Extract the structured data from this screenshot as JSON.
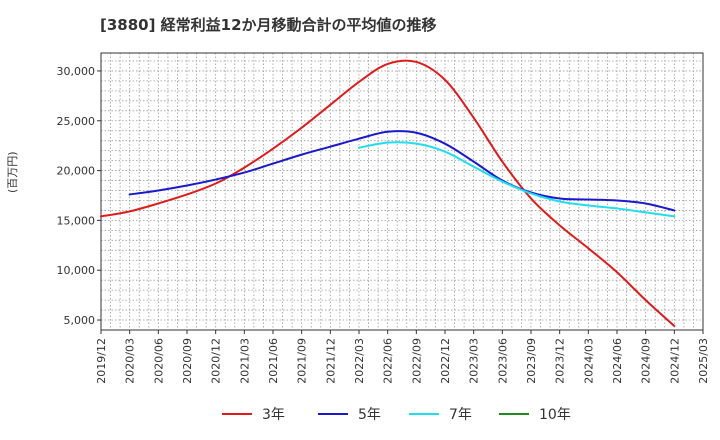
{
  "chart_data": {
    "type": "line",
    "title": "[3880]  経常利益12か月移動合計の平均値の推移",
    "ylabel": "(百万円)",
    "ylim": [
      4000,
      31800
    ],
    "yticks": [
      5000,
      10000,
      15000,
      20000,
      25000,
      30000
    ],
    "ytick_labels": [
      "5,000",
      "10,000",
      "15,000",
      "20,000",
      "25,000",
      "30,000"
    ],
    "xlim": [
      "2019/12",
      "2025/03"
    ],
    "xtick_labels": [
      "2019/12",
      "2020/03",
      "2020/06",
      "2020/09",
      "2020/12",
      "2021/03",
      "2021/06",
      "2021/09",
      "2021/12",
      "2022/03",
      "2022/06",
      "2022/09",
      "2022/12",
      "2023/03",
      "2023/06",
      "2023/09",
      "2023/12",
      "2024/03",
      "2024/06",
      "2024/09",
      "2024/12",
      "2025/03"
    ],
    "grid": true,
    "legend_position": "bottom",
    "series": [
      {
        "name": "3年",
        "color": "#dd1c1c",
        "x": [
          "2019/12",
          "2020/03",
          "2020/06",
          "2020/09",
          "2020/12",
          "2021/03",
          "2021/06",
          "2021/09",
          "2021/12",
          "2022/03",
          "2022/06",
          "2022/09",
          "2022/12",
          "2023/03",
          "2023/06",
          "2023/09",
          "2023/12",
          "2024/03",
          "2024/06",
          "2024/09",
          "2024/12"
        ],
        "values": [
          15400,
          15900,
          16700,
          17600,
          18700,
          20300,
          22200,
          24300,
          26600,
          28900,
          30700,
          30900,
          29100,
          25300,
          20900,
          17200,
          14500,
          12200,
          9800,
          7000,
          4400
        ]
      },
      {
        "name": "5年",
        "color": "#1a1acc",
        "x": [
          "2020/03",
          "2020/06",
          "2020/09",
          "2020/12",
          "2021/03",
          "2021/06",
          "2021/09",
          "2021/12",
          "2022/03",
          "2022/06",
          "2022/09",
          "2022/12",
          "2023/03",
          "2023/06",
          "2023/09",
          "2023/12",
          "2024/03",
          "2024/06",
          "2024/09",
          "2024/12"
        ],
        "values": [
          17600,
          18000,
          18500,
          19100,
          19800,
          20700,
          21600,
          22400,
          23200,
          23900,
          23800,
          22700,
          20900,
          19000,
          17800,
          17200,
          17100,
          17000,
          16700,
          16000
        ]
      },
      {
        "name": "7年",
        "color": "#22ddee",
        "x": [
          "2022/03",
          "2022/06",
          "2022/09",
          "2022/12",
          "2023/03",
          "2023/06",
          "2023/09",
          "2023/12",
          "2024/03",
          "2024/06",
          "2024/09",
          "2024/12"
        ],
        "values": [
          22300,
          22800,
          22700,
          21900,
          20400,
          18900,
          17700,
          16900,
          16500,
          16200,
          15800,
          15400
        ]
      },
      {
        "name": "10年",
        "color": "#228822",
        "x": [],
        "values": []
      }
    ]
  }
}
